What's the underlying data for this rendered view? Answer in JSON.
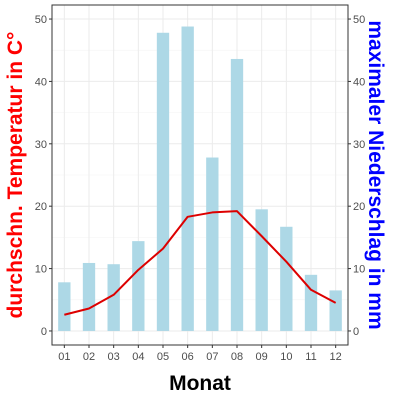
{
  "chart_data": {
    "type": "bar",
    "categories": [
      "01",
      "02",
      "03",
      "04",
      "05",
      "06",
      "07",
      "08",
      "09",
      "10",
      "11",
      "12"
    ],
    "xlabel": "Monat",
    "ylabel_left": "durchschn. Temperatur in C°",
    "ylabel_right": "maximaler Niederschlag in mm",
    "ylim": [
      0,
      50
    ],
    "yticks": [
      0,
      10,
      20,
      30,
      40,
      50
    ],
    "grid": true,
    "series": [
      {
        "type": "bar",
        "axis": "right",
        "color": "#add8e6",
        "values": [
          7.8,
          10.9,
          10.7,
          14.4,
          47.8,
          48.8,
          27.8,
          43.6,
          19.5,
          16.7,
          9.0,
          6.5
        ]
      },
      {
        "type": "line",
        "axis": "left",
        "color": "#dd0000",
        "values": [
          2.6,
          3.6,
          5.8,
          9.8,
          13.2,
          18.3,
          19.0,
          19.2,
          15.2,
          11.1,
          6.6,
          4.5
        ]
      }
    ]
  }
}
